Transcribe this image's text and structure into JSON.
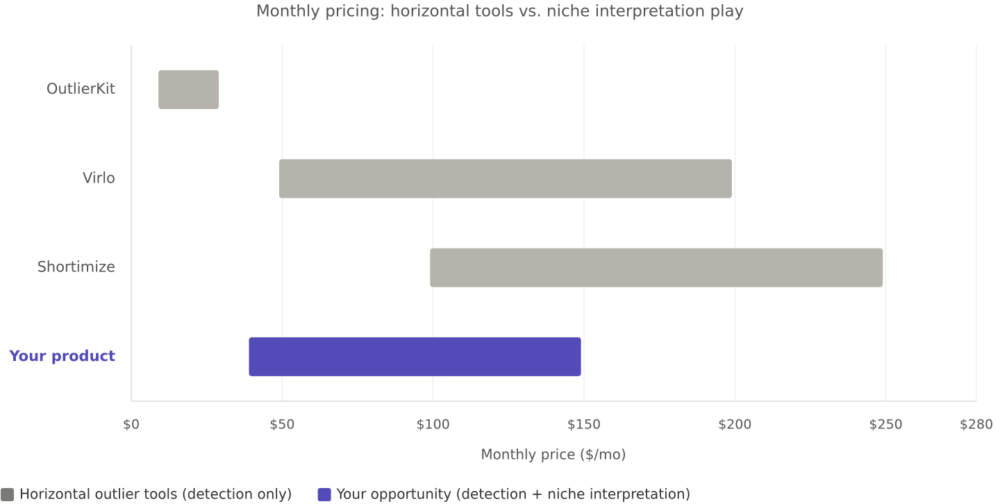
{
  "chart_data": {
    "type": "range-bar",
    "title": "Monthly pricing: horizontal tools vs. niche interpretation play",
    "x_label": "Monthly price ($/mo)",
    "categories": [
      "OutlierKit",
      "Virlo",
      "Shortimize",
      "Your product"
    ],
    "series": [
      {
        "name": "Horizontal outlier tools (detection only)",
        "color": "#b5b3ab",
        "values": [
          [
            9,
            29
          ],
          [
            49,
            199
          ],
          [
            99,
            249
          ],
          null
        ]
      },
      {
        "name": "Your opportunity (detection + niche interpretation)",
        "color": "#534bb8",
        "values": [
          null,
          null,
          null,
          [
            39,
            149
          ]
        ]
      }
    ],
    "highlight_series": 1,
    "xlim": [
      0,
      280
    ],
    "xticks": [
      {
        "value": 0,
        "label": "$0"
      },
      {
        "value": 50,
        "label": "$50"
      },
      {
        "value": 100,
        "label": "$100"
      },
      {
        "value": 150,
        "label": "$150"
      },
      {
        "value": 200,
        "label": "$200"
      },
      {
        "value": 250,
        "label": "$250"
      },
      {
        "value": 280,
        "label": "$280"
      }
    ],
    "grid": true,
    "legend": "bottom-left"
  }
}
